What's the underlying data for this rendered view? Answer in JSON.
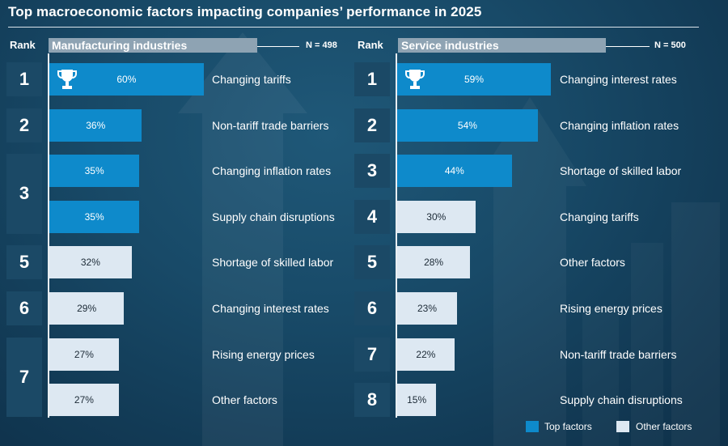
{
  "title": "Top macroeconomic factors impacting companies’ performance in 2025",
  "rank_header": "Rank",
  "colors": {
    "top": "#0e8acb",
    "other": "#dde8f2",
    "header": "#8ea3b3",
    "rank_box": "#1b4966"
  },
  "chart_data": [
    {
      "type": "bar",
      "orientation": "horizontal",
      "title": "Manufacturing industries",
      "n_label": "N = 498",
      "value_unit": "%",
      "xlim": [
        0,
        100
      ],
      "categories": [
        "Changing tariffs",
        "Non-tariff trade barriers",
        "Changing inflation rates",
        "Supply chain disruptions",
        "Shortage of skilled labor",
        "Changing interest rates",
        "Rising energy prices",
        "Other factors"
      ],
      "values": [
        60,
        36,
        35,
        35,
        32,
        29,
        27,
        27
      ],
      "value_labels": [
        "60%",
        "36%",
        "35%",
        "35%",
        "32%",
        "29%",
        "27%",
        "27%"
      ],
      "groups": [
        "top",
        "top",
        "top",
        "top",
        "other",
        "other",
        "other",
        "other"
      ],
      "ranks": [
        {
          "label": "1",
          "span": 1
        },
        {
          "label": "2",
          "span": 1
        },
        {
          "label": "3",
          "span": 2
        },
        {
          "label": "5",
          "span": 1
        },
        {
          "label": "6",
          "span": 1
        },
        {
          "label": "7",
          "span": 2
        }
      ],
      "trophy_on_first": true
    },
    {
      "type": "bar",
      "orientation": "horizontal",
      "title": "Service industries",
      "n_label": "N = 500",
      "value_unit": "%",
      "xlim": [
        0,
        100
      ],
      "categories": [
        "Changing interest rates",
        "Changing inflation rates",
        "Shortage of skilled labor",
        "Changing tariffs",
        "Other factors",
        "Rising energy prices",
        "Non-tariff trade barriers",
        "Supply chain disruptions"
      ],
      "values": [
        59,
        54,
        44,
        30,
        28,
        23,
        22,
        15
      ],
      "value_labels": [
        "59%",
        "54%",
        "44%",
        "30%",
        "28%",
        "23%",
        "22%",
        "15%"
      ],
      "groups": [
        "top",
        "top",
        "top",
        "other",
        "other",
        "other",
        "other",
        "other"
      ],
      "ranks": [
        {
          "label": "1",
          "span": 1
        },
        {
          "label": "2",
          "span": 1
        },
        {
          "label": "3",
          "span": 1
        },
        {
          "label": "4",
          "span": 1
        },
        {
          "label": "5",
          "span": 1
        },
        {
          "label": "6",
          "span": 1
        },
        {
          "label": "7",
          "span": 1
        },
        {
          "label": "8",
          "span": 1
        }
      ],
      "trophy_on_first": true
    }
  ],
  "legend": [
    {
      "label": "Top factors",
      "group": "top"
    },
    {
      "label": "Other factors",
      "group": "other"
    }
  ]
}
